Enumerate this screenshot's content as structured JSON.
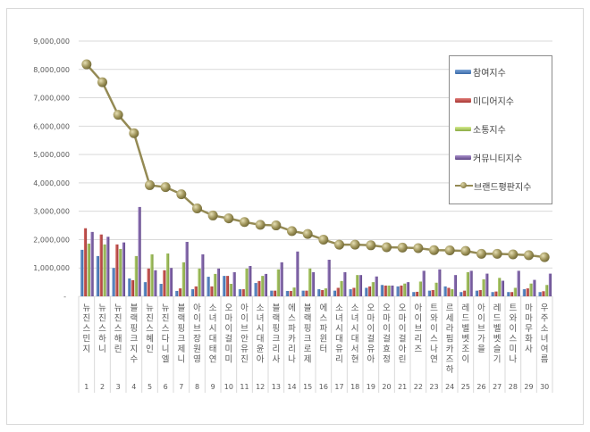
{
  "chart_data": {
    "type": "bar",
    "title": "",
    "xlabel": "",
    "ylabel": "",
    "ylim": [
      0,
      9000000
    ],
    "grid": true,
    "legend_position": "right-inside",
    "y_ticks": [
      "-",
      "1,000,000",
      "2,000,000",
      "3,000,000",
      "4,000,000",
      "5,000,000",
      "6,000,000",
      "7,000,000",
      "8,000,000",
      "9,000,000"
    ],
    "ranks": [
      1,
      2,
      3,
      4,
      5,
      6,
      7,
      8,
      9,
      10,
      11,
      12,
      13,
      14,
      15,
      16,
      17,
      18,
      19,
      20,
      21,
      22,
      23,
      24,
      25,
      26,
      27,
      28,
      29,
      30
    ],
    "categories": [
      "뉴진스 민지",
      "뉴진스 하니",
      "뉴진스 해린",
      "블랙핑크 지수",
      "뉴진스 혜인",
      "뉴진스 다니엘",
      "블랙핑크 제니",
      "아이브 장원영",
      "소녀시대 태연",
      "오마이걸 미미",
      "아이브 안유진",
      "소녀시대 윤아",
      "블랙핑크 리사",
      "에스파 카리나",
      "블랙핑크 로제",
      "에스파 윈터",
      "소녀시대 유리",
      "소녀시대 서현",
      "오마이걸 유아",
      "오마이걸 효정",
      "오마이걸 아린",
      "아이브 리즈",
      "트와이스 나연",
      "르세라핌 카즈하",
      "레드벨벳 조이",
      "아이브 가을",
      "레드벨벳 슬기",
      "트와이스 미나",
      "마마무 화사",
      "우주소녀 여름"
    ],
    "series": [
      {
        "name": "참여지수",
        "type": "bar",
        "color": "#4f81bd",
        "values": [
          1640000,
          1420000,
          1000000,
          630000,
          500000,
          440000,
          190000,
          250000,
          690000,
          720000,
          250000,
          470000,
          200000,
          190000,
          200000,
          250000,
          200000,
          250000,
          300000,
          400000,
          350000,
          150000,
          200000,
          350000,
          150000,
          200000,
          150000,
          150000,
          250000,
          150000
        ]
      },
      {
        "name": "미디어지수",
        "type": "bar",
        "color": "#c0504d",
        "values": [
          2400000,
          2180000,
          1830000,
          570000,
          980000,
          920000,
          280000,
          350000,
          350000,
          720000,
          250000,
          540000,
          200000,
          190000,
          200000,
          220000,
          300000,
          300000,
          350000,
          380000,
          380000,
          160000,
          220000,
          300000,
          200000,
          220000,
          170000,
          150000,
          280000,
          180000
        ]
      },
      {
        "name": "소통지수",
        "type": "bar",
        "color": "#9bbb59",
        "values": [
          1860000,
          1830000,
          1670000,
          1420000,
          1480000,
          1510000,
          1200000,
          980000,
          790000,
          440000,
          980000,
          720000,
          950000,
          310000,
          980000,
          280000,
          540000,
          750000,
          500000,
          380000,
          450000,
          520000,
          480000,
          250000,
          850000,
          600000,
          650000,
          300000,
          450000,
          400000
        ]
      },
      {
        "name": "커뮤니티지수",
        "type": "bar",
        "color": "#8064a2",
        "values": [
          2270000,
          2100000,
          1900000,
          3150000,
          920000,
          1000000,
          1920000,
          1480000,
          980000,
          850000,
          1070000,
          790000,
          1200000,
          1580000,
          850000,
          1290000,
          850000,
          750000,
          700000,
          380000,
          500000,
          900000,
          950000,
          750000,
          900000,
          800000,
          550000,
          900000,
          580000,
          800000
        ]
      },
      {
        "name": "브랜드평판지수",
        "type": "line",
        "color": "#948a54",
        "values": [
          8180000,
          7550000,
          6400000,
          5750000,
          3920000,
          3850000,
          3600000,
          3100000,
          2850000,
          2750000,
          2620000,
          2520000,
          2500000,
          2300000,
          2200000,
          2000000,
          1820000,
          1820000,
          1800000,
          1730000,
          1720000,
          1700000,
          1630000,
          1620000,
          1600000,
          1500000,
          1500000,
          1480000,
          1450000,
          1380000
        ]
      }
    ]
  },
  "legend": {
    "items": [
      {
        "label": "참여지수"
      },
      {
        "label": "미디어지수"
      },
      {
        "label": "소통지수"
      },
      {
        "label": "커뮤니티지수"
      },
      {
        "label": "브랜드평판지수"
      }
    ]
  }
}
